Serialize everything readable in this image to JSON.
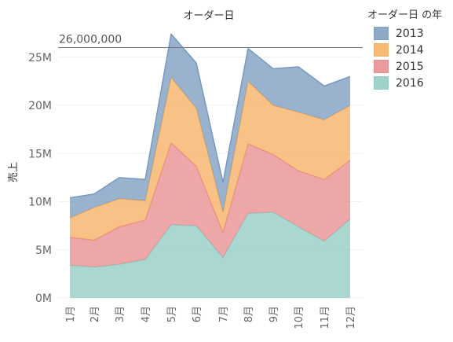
{
  "chart_data": {
    "type": "area",
    "stacked": true,
    "title": "オーダー日",
    "ylabel": "売上",
    "xlabel": "",
    "categories": [
      "1月",
      "2月",
      "3月",
      "4月",
      "5月",
      "6月",
      "7月",
      "8月",
      "9月",
      "10月",
      "11月",
      "12月"
    ],
    "ylim": [
      0,
      28000000
    ],
    "yticks": [
      {
        "value": 0,
        "label": "0M"
      },
      {
        "value": 5000000,
        "label": "5M"
      },
      {
        "value": 10000000,
        "label": "10M"
      },
      {
        "value": 15000000,
        "label": "15M"
      },
      {
        "value": 20000000,
        "label": "20M"
      },
      {
        "value": 25000000,
        "label": "25M"
      }
    ],
    "series": [
      {
        "name": "2016",
        "color": "#8ECBC2",
        "values": [
          3400000,
          3200000,
          3500000,
          4000000,
          7600000,
          7500000,
          4200000,
          8800000,
          8900000,
          7400000,
          5900000,
          8200000
        ]
      },
      {
        "name": "2015",
        "color": "#E88A8C",
        "values": [
          2900000,
          2800000,
          3900000,
          4100000,
          8500000,
          6200000,
          2600000,
          7200000,
          6000000,
          5800000,
          6400000,
          6100000
        ]
      },
      {
        "name": "2014",
        "color": "#F6AE5D",
        "values": [
          2000000,
          3400000,
          2900000,
          2000000,
          6800000,
          6000000,
          2100000,
          6500000,
          5100000,
          6100000,
          6200000,
          5700000
        ]
      },
      {
        "name": "2013",
        "color": "#7799BE",
        "values": [
          2100000,
          1400000,
          2200000,
          2200000,
          4500000,
          4700000,
          3100000,
          3400000,
          3800000,
          4700000,
          3500000,
          3000000
        ]
      }
    ],
    "reference_line": {
      "value": 26000000,
      "label": "26,000,000"
    },
    "legend": {
      "title": "オーダー日 の年",
      "position": "right"
    },
    "grid": true
  }
}
